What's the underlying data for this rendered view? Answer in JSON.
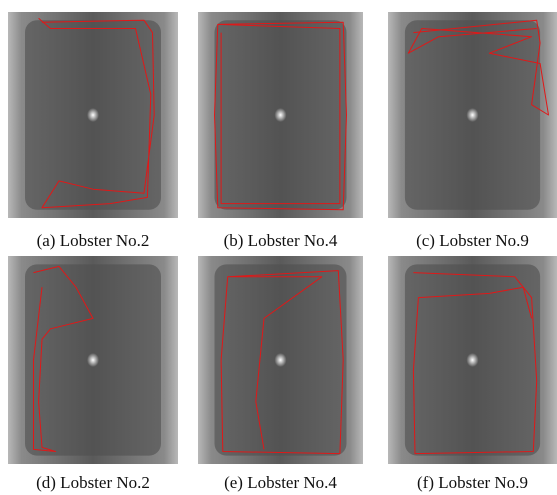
{
  "figure": {
    "captions": [
      "(a) Lobster No.2",
      "(b) Lobster No.4",
      "(c) Lobster No.9",
      "(d) Lobster No.2",
      "(e) Lobster No.4",
      "(f) Lobster No.9"
    ]
  }
}
